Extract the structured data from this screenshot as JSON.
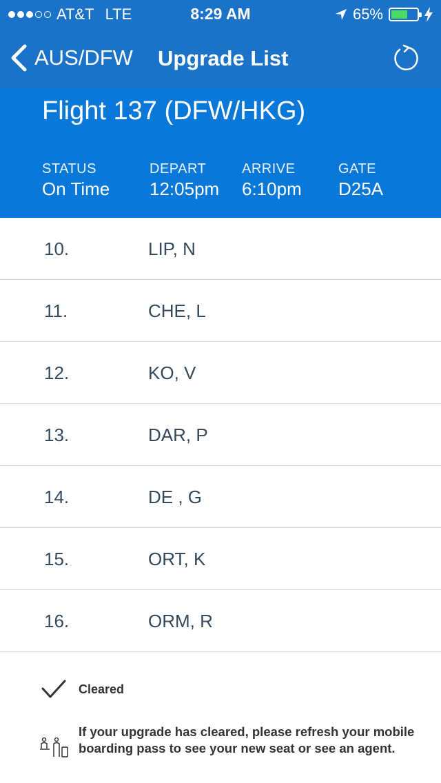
{
  "status_bar": {
    "carrier": "AT&T",
    "network": "LTE",
    "time": "8:29 AM",
    "battery": "65%",
    "battery_level": 0.65,
    "signal_bars_filled": 3,
    "signal_bars_total": 5
  },
  "nav": {
    "back_label": "AUS/DFW",
    "title": "Upgrade List",
    "refresh_icon": "refresh-icon"
  },
  "flight": {
    "title": "Flight 137 (DFW/HKG)",
    "status_label": "STATUS",
    "status_value": "On Time",
    "depart_label": "DEPART",
    "depart_value": "12:05pm",
    "arrive_label": "ARRIVE",
    "arrive_value": "6:10pm",
    "gate_label": "GATE",
    "gate_value": "D25A"
  },
  "list": [
    {
      "num": "10.",
      "name": "LIP, N"
    },
    {
      "num": "11.",
      "name": "CHE, L"
    },
    {
      "num": "12.",
      "name": "KO, V"
    },
    {
      "num": "13.",
      "name": "DAR, P"
    },
    {
      "num": "14.",
      "name": "DE , G"
    },
    {
      "num": "15.",
      "name": "ORT, K"
    },
    {
      "num": "16.",
      "name": "ORM, R"
    }
  ],
  "legend": {
    "cleared_label": "Cleared",
    "note": "If your upgrade has cleared, please refresh your mobile boarding pass to see your new seat or see an agent."
  },
  "colors": {
    "nav_bg": "#1b73c9",
    "flight_panel_bg": "#0a78d8",
    "text": "#36495a",
    "battery_fill": "#4cd964"
  }
}
